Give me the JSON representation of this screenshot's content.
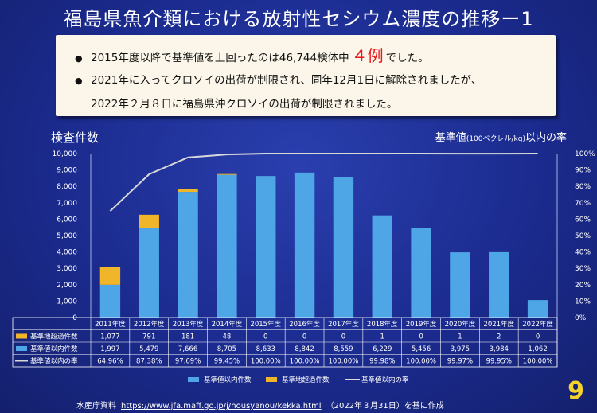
{
  "title": "福島県魚介類における放射性セシウム濃度の推移ー1",
  "notice": {
    "line1_prefix": "2015年度以降で基準値を上回ったのは46,744検体中",
    "line1_count": "４例",
    "line1_suffix": "でした。",
    "line2": "2021年に入ってクロソイの出荷が制限され、同年12月1日に解除されましたが、",
    "line3": "2022年２月８日に福島県沖クロソイの出荷が制限されました。",
    "bullet": "●"
  },
  "axis_left_title": "検査件数",
  "axis_right_title_main": "基準値",
  "axis_right_title_unit": "(100ベクレル/kg)",
  "axis_right_title_suffix": "以内の率",
  "source": {
    "prefix": "水産庁資料",
    "url": "https://www.jfa.maff.go.jp/j/housyanou/kekka.html",
    "suffix": "（2022年３月31日）を基に作成"
  },
  "page_number": "9",
  "colors": {
    "within": "#4ea6e6",
    "exceed": "#f1b52a",
    "line": "#d9d9d9"
  },
  "chart_data": {
    "type": "bar",
    "stacked": true,
    "categories": [
      "2011年度",
      "2012年度",
      "2013年度",
      "2014年度",
      "2015年度",
      "2016年度",
      "2017年度",
      "2018年度",
      "2019年度",
      "2020年度",
      "2021年度",
      "2022年度"
    ],
    "series": [
      {
        "name": "基準値以内件数",
        "values": [
          1997,
          5479,
          7666,
          8705,
          8633,
          8842,
          8559,
          6229,
          5456,
          3975,
          3984,
          1062
        ]
      },
      {
        "name": "基準地超過件数",
        "values": [
          1077,
          791,
          181,
          48,
          0,
          0,
          0,
          1,
          0,
          1,
          2,
          0
        ]
      }
    ],
    "line_series": {
      "name": "基準値以内の率",
      "values": [
        64.96,
        87.38,
        97.69,
        99.45,
        100.0,
        100.0,
        100.0,
        99.98,
        100.0,
        99.97,
        99.95,
        100.0
      ]
    },
    "table_rows": [
      {
        "label": "基準地超過件数",
        "values": [
          "1,077",
          "791",
          "181",
          "48",
          "0",
          "0",
          "0",
          "1",
          "0",
          "1",
          "2",
          "0"
        ]
      },
      {
        "label": "基準値以内件数",
        "values": [
          "1,997",
          "5,479",
          "7,666",
          "8,705",
          "8,633",
          "8,842",
          "8,559",
          "6,229",
          "5,456",
          "3,975",
          "3,984",
          "1,062"
        ]
      },
      {
        "label": "基準値以内の率",
        "values": [
          "64.96%",
          "87.38%",
          "97.69%",
          "99.45%",
          "100.00%",
          "100.00%",
          "100.00%",
          "99.98%",
          "100.00%",
          "99.97%",
          "99.95%",
          "100.00%"
        ]
      }
    ],
    "ylim_left": [
      0,
      10000
    ],
    "yticks_left": [
      "0",
      "1,000",
      "2,000",
      "3,000",
      "4,000",
      "5,000",
      "6,000",
      "7,000",
      "8,000",
      "9,000",
      "10,000"
    ],
    "ylim_right": [
      0,
      100
    ],
    "yticks_right": [
      "0%",
      "10%",
      "20%",
      "30%",
      "40%",
      "50%",
      "60%",
      "70%",
      "80%",
      "90%",
      "100%"
    ],
    "legend": [
      "基準値以内件数",
      "基準地超過件数",
      "基準値以内の率"
    ],
    "legend_position": "bottom",
    "grid": false
  }
}
